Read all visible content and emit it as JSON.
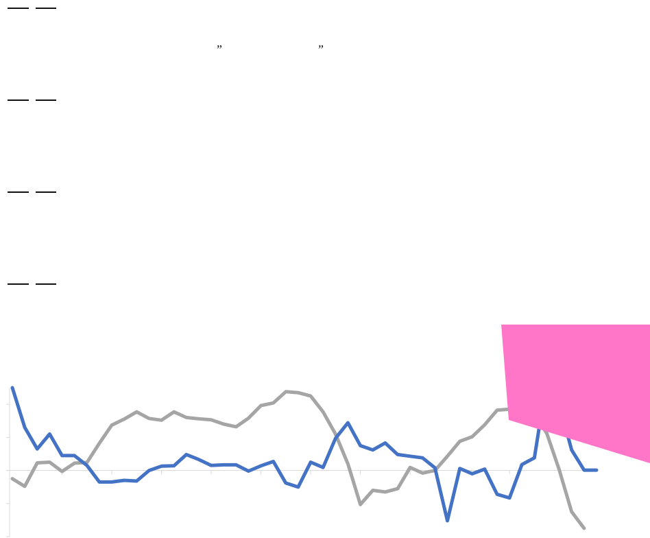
{
  "header": {
    "open_quote": "”",
    "close_quote": "”"
  },
  "legend": {
    "rows": 4,
    "swatch_color": "#111111"
  },
  "overlay": {
    "color": "#FF75C8"
  },
  "chart_data": {
    "type": "line",
    "title": "",
    "xlabel": "",
    "ylabel": "",
    "grid": false,
    "ylim": [
      -2.0,
      2.5
    ],
    "xlim": [
      0,
      47
    ],
    "x_tick_step": 4,
    "y_tick_step": 1,
    "zero_line": true,
    "series": [
      {
        "color": "#4472C4",
        "values": [
          2.5,
          1.3,
          0.65,
          1.1,
          0.45,
          0.45,
          0.15,
          -0.35,
          -0.35,
          -0.3,
          -0.32,
          0.0,
          0.13,
          0.14,
          0.48,
          0.33,
          0.15,
          0.17,
          0.17,
          -0.02,
          0.14,
          0.27,
          -0.38,
          -0.5,
          0.25,
          0.09,
          0.97,
          1.44,
          0.75,
          0.62,
          0.83,
          0.48,
          0.43,
          0.38,
          0.08,
          -1.52,
          0.06,
          -0.1,
          0.04,
          -0.72,
          -0.83,
          0.18,
          0.38,
          2.75,
          2.0,
          0.62,
          0.01,
          0.01
        ]
      },
      {
        "color": "#A5A5A5",
        "values": [
          -0.25,
          -0.48,
          0.23,
          0.25,
          -0.03,
          0.22,
          0.24,
          0.82,
          1.37,
          1.55,
          1.77,
          1.57,
          1.52,
          1.77,
          1.6,
          1.56,
          1.53,
          1.4,
          1.32,
          1.58,
          1.96,
          2.04,
          2.38,
          2.35,
          2.25,
          1.77,
          1.1,
          0.2,
          -1.03,
          -0.6,
          -0.65,
          -0.55,
          0.09,
          -0.08,
          0.0,
          0.43,
          0.88,
          1.02,
          1.38,
          1.82,
          1.85,
          1.85,
          1.71,
          1.12,
          0.02,
          -1.25,
          -1.75
        ]
      }
    ]
  }
}
